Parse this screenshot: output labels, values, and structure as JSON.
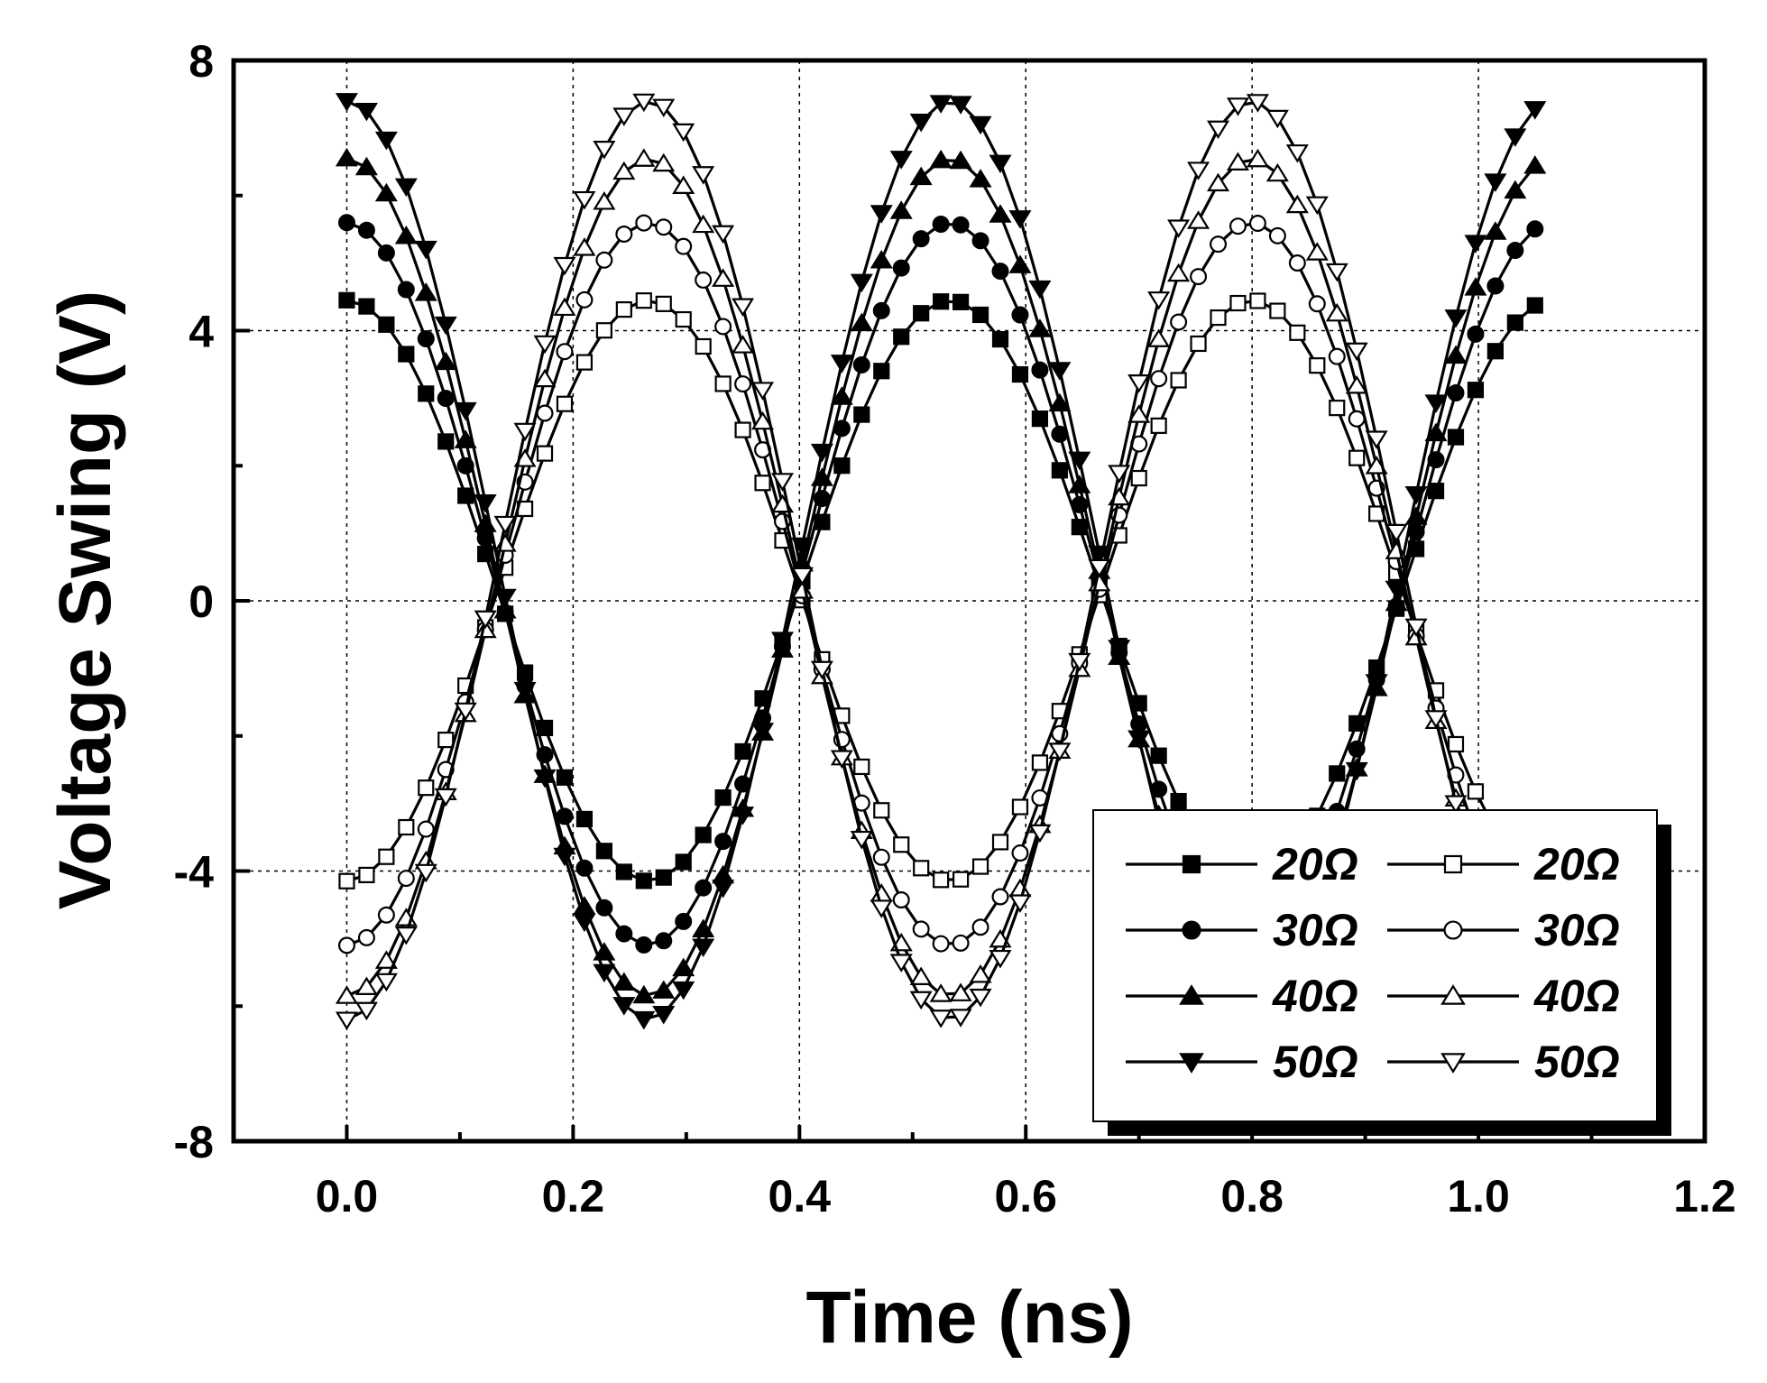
{
  "chart_data": {
    "type": "line",
    "title": "",
    "xlabel": "Time (ns)",
    "ylabel": "Voltage Swing (V)",
    "xlim": [
      -0.1,
      1.2
    ],
    "ylim": [
      -8,
      8
    ],
    "xticks": [
      0.0,
      0.2,
      0.4,
      0.6,
      0.8,
      1.0,
      1.2
    ],
    "xtick_labels": [
      "0.0",
      "0.2",
      "0.4",
      "0.6",
      "0.8",
      "1.0",
      "1.2"
    ],
    "yticks": [
      -8,
      -4,
      0,
      4,
      8
    ],
    "ytick_labels": [
      "-8",
      "-4",
      "0",
      "4",
      "8"
    ],
    "grid": true,
    "legend_position": "bottom-right",
    "x_start": 0.0,
    "x_end": 1.05,
    "x_step": 0.0175,
    "period_ns": 0.533,
    "series": [
      {
        "name": "20Ω",
        "label": "20Ω",
        "marker": "square",
        "filled": true,
        "amplitude": 4.3,
        "offset": 0.15,
        "phase": "positive-at-0"
      },
      {
        "name": "30Ω",
        "label": "30Ω",
        "marker": "circle",
        "filled": true,
        "amplitude": 5.35,
        "offset": 0.25,
        "phase": "positive-at-0"
      },
      {
        "name": "40Ω",
        "label": "40Ω",
        "marker": "triangle-up",
        "filled": true,
        "amplitude": 6.2,
        "offset": 0.35,
        "phase": "positive-at-0"
      },
      {
        "name": "50Ω",
        "label": "50Ω",
        "marker": "triangle-down",
        "filled": true,
        "amplitude": 6.8,
        "offset": 0.6,
        "phase": "positive-at-0"
      },
      {
        "name": "20Ω",
        "label": "20Ω",
        "marker": "square",
        "filled": false,
        "amplitude": 4.3,
        "offset": 0.15,
        "phase": "negative-at-0"
      },
      {
        "name": "30Ω",
        "label": "30Ω",
        "marker": "circle",
        "filled": false,
        "amplitude": 5.35,
        "offset": 0.25,
        "phase": "negative-at-0"
      },
      {
        "name": "40Ω",
        "label": "40Ω",
        "marker": "triangle-up",
        "filled": false,
        "amplitude": 6.2,
        "offset": 0.35,
        "phase": "negative-at-0"
      },
      {
        "name": "50Ω",
        "label": "50Ω",
        "marker": "triangle-down",
        "filled": false,
        "amplitude": 6.8,
        "offset": 0.6,
        "phase": "negative-at-0"
      }
    ]
  }
}
